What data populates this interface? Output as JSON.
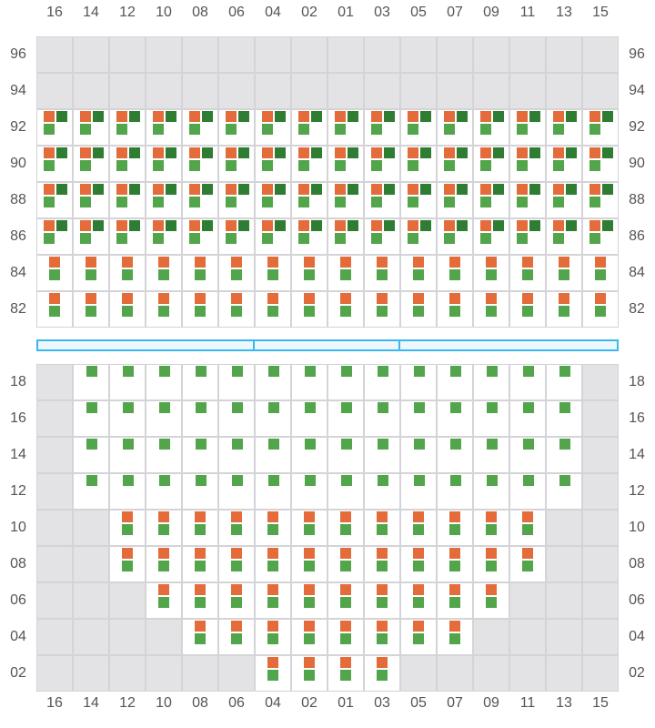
{
  "colors": {
    "orange": "#e36c3a",
    "dark_green": "#2e7d32",
    "light_green": "#52a54a",
    "unavailable": "#e3e3e6",
    "divider": "#3bb7f0"
  },
  "columns": [
    "16",
    "14",
    "12",
    "10",
    "08",
    "06",
    "04",
    "02",
    "01",
    "03",
    "05",
    "07",
    "09",
    "11",
    "13",
    "15"
  ],
  "top_section": {
    "rows": [
      {
        "label": "96",
        "cells": "UUUUUUUUUUUUUUUU"
      },
      {
        "label": "94",
        "cells": "UUUUUUUUUUUUUUUU"
      },
      {
        "label": "92",
        "cells": "FFFFFFFFFFFFFFFF"
      },
      {
        "label": "90",
        "cells": "FFFFFFFFFFFFFFFF"
      },
      {
        "label": "88",
        "cells": "FFFFFFFFFFFFFFFF"
      },
      {
        "label": "86",
        "cells": "FFFFFFFFFFFFFFFF"
      },
      {
        "label": "84",
        "cells": "PPPPPPPPPPPPPPPP"
      },
      {
        "label": "82",
        "cells": "PPPPPPPPPPPPPPPP"
      }
    ]
  },
  "divider_segments": 3,
  "bottom_section": {
    "rows": [
      {
        "label": "18",
        "cells": "UGGGGGGGGGGGGGGU"
      },
      {
        "label": "16",
        "cells": "UGGGGGGGGGGGGGGU"
      },
      {
        "label": "14",
        "cells": "UGGGGGGGGGGGGGGU"
      },
      {
        "label": "12",
        "cells": "UGGGGGGGGGGGGGGU"
      },
      {
        "label": "10",
        "cells": "UUPPPPPPPPPPPPUU"
      },
      {
        "label": "08",
        "cells": "UUPPPPPPPPPPPPUU"
      },
      {
        "label": "06",
        "cells": "UUUPPPPPPPPPPUUU"
      },
      {
        "label": "04",
        "cells": "UUUUPPPPPPPPUUUU"
      },
      {
        "label": "02",
        "cells": "UUUUUUPPPPUUUUUU"
      }
    ]
  },
  "legend_codes": {
    "U": "unavailable",
    "F": "orange+dark-green+light-green",
    "P": "orange+light-green",
    "G": "light-green"
  }
}
